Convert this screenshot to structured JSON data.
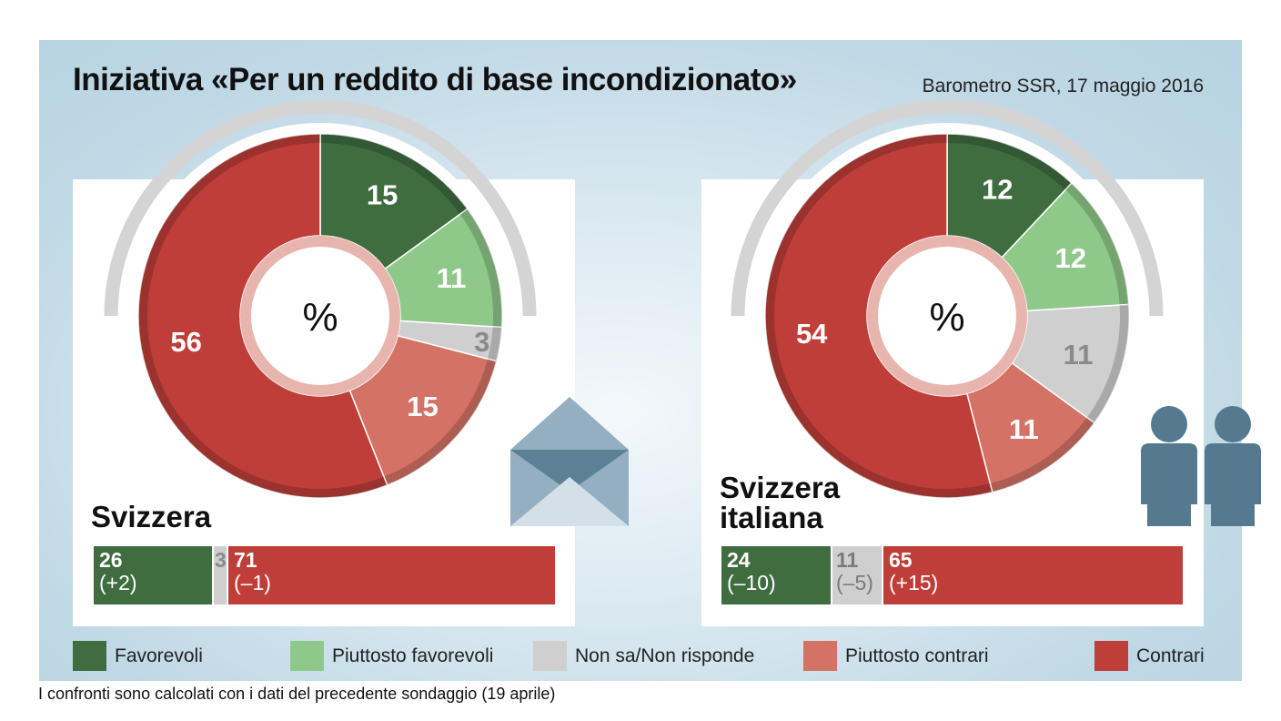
{
  "title": "Iniziativa «Per un reddito di base incondizionato»",
  "source": "Barometro SSR, 17 maggio 2016",
  "footnote": "I confronti sono calcolati con i dati del precedente sondaggio (19 aprile)",
  "colors": {
    "favorevoli": "#3f6d40",
    "piuttosto_favorevoli": "#8fc98a",
    "non_sa": "#cfcfcf",
    "piuttosto_contrari": "#d47265",
    "contrari": "#bf3e39"
  },
  "legend": [
    {
      "label": "Favorevoli",
      "color": "#3f6d40"
    },
    {
      "label": "Piuttosto favorevoli",
      "color": "#8fc98a"
    },
    {
      "label": "Non sa/Non risponde",
      "color": "#cfcfcf"
    },
    {
      "label": "Piuttosto contrari",
      "color": "#d47265"
    },
    {
      "label": "Contrari",
      "color": "#bf3e39"
    }
  ],
  "icons": [
    "envelope-icon",
    "people-icon"
  ],
  "chart_data": [
    {
      "type": "pie",
      "region": "Svizzera",
      "center_label": "%",
      "categories": [
        "Favorevoli",
        "Piuttosto favorevoli",
        "Non sa/Non risponde",
        "Piuttosto contrari",
        "Contrari"
      ],
      "values": [
        15,
        11,
        3,
        15,
        56
      ],
      "summary": [
        {
          "value": "26",
          "delta": "(+2)"
        },
        {
          "value": "3",
          "delta": ""
        },
        {
          "value": "71",
          "delta": "(–1)"
        }
      ]
    },
    {
      "type": "pie",
      "region": "Svizzera italiana",
      "center_label": "%",
      "categories": [
        "Favorevoli",
        "Piuttosto favorevoli",
        "Non sa/Non risponde",
        "Piuttosto contrari",
        "Contrari"
      ],
      "values": [
        12,
        12,
        11,
        11,
        54
      ],
      "summary": [
        {
          "value": "24",
          "delta": "(–10)"
        },
        {
          "value": "11",
          "delta": "(–5)"
        },
        {
          "value": "65",
          "delta": "(+15)"
        }
      ]
    }
  ]
}
